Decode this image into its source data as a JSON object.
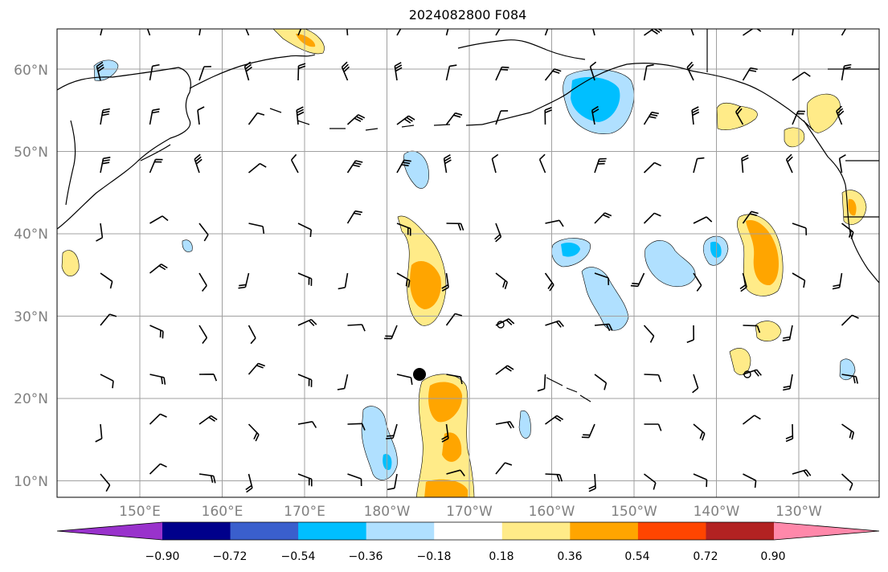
{
  "title": "2024082800 F084",
  "lat_labels": [
    "10°N",
    "20°N",
    "30°N",
    "40°N",
    "50°N",
    "60°N"
  ],
  "lon_labels": [
    "150°E",
    "160°E",
    "170°E",
    "180°W",
    "170°W",
    "160°W",
    "150°W",
    "140°W",
    "130°W"
  ],
  "colorbar": {
    "tick_labels": [
      "−0.90",
      "−0.72",
      "−0.54",
      "−0.36",
      "−0.18",
      "0.18",
      "0.36",
      "0.54",
      "0.72",
      "0.90"
    ],
    "colors": [
      "#9932cc",
      "#00008b",
      "#3a5fcd",
      "#00bfff",
      "#b0e0ff",
      "#ffffff",
      "#ffeb88",
      "#ffa500",
      "#ff4500",
      "#b22222",
      "#ff88aa"
    ]
  },
  "colors": {
    "light_blue": "#b0e0ff",
    "mid_blue": "#00bfff",
    "light_yellow": "#ffeb88",
    "orange": "#ffa500",
    "grid": "#a0a0a0",
    "coast": "#000000"
  }
}
